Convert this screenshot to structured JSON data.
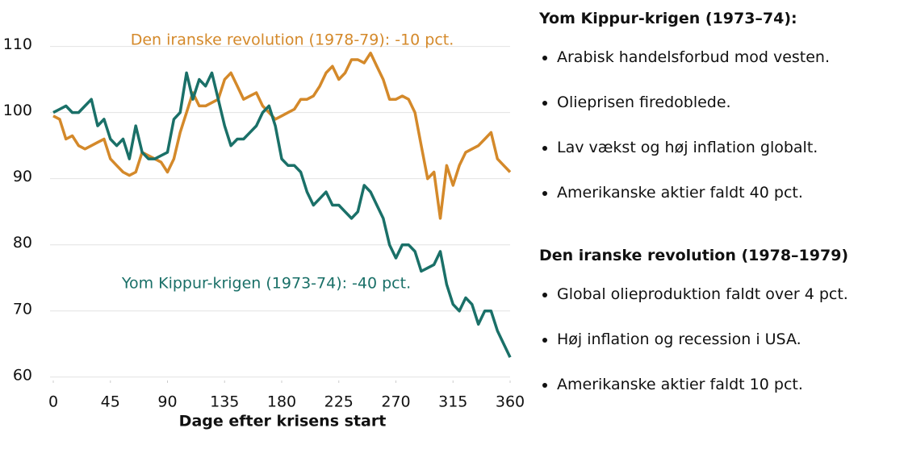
{
  "chart_data": {
    "type": "line",
    "x_label": "Dage efter krisens start",
    "x": [
      0,
      5,
      10,
      15,
      20,
      25,
      30,
      35,
      40,
      45,
      50,
      55,
      60,
      65,
      70,
      75,
      80,
      85,
      90,
      95,
      100,
      105,
      110,
      115,
      120,
      125,
      130,
      135,
      140,
      145,
      150,
      155,
      160,
      165,
      170,
      175,
      180,
      185,
      190,
      195,
      200,
      205,
      210,
      215,
      220,
      225,
      230,
      235,
      240,
      245,
      250,
      255,
      260,
      265,
      270,
      275,
      280,
      285,
      290,
      295,
      300,
      305,
      310,
      315,
      320,
      325,
      330,
      335,
      340,
      345,
      350,
      355,
      360
    ],
    "series": [
      {
        "name": "Den iranske revolution (1978-79): -10 pct.",
        "color": "#d4892a",
        "values": [
          99.5,
          99,
          96,
          96.5,
          95,
          94.5,
          95,
          95.5,
          96,
          93,
          92,
          91,
          90.5,
          91,
          94,
          93.5,
          93,
          92.5,
          91,
          93,
          97,
          100,
          103,
          101,
          101,
          101.5,
          102,
          105,
          106,
          104,
          102,
          102.5,
          103,
          101,
          100,
          99,
          99.5,
          100,
          100.5,
          102,
          102,
          102.5,
          104,
          106,
          107,
          105,
          106,
          108,
          108,
          107.5,
          109,
          107,
          105,
          102,
          102,
          102.5,
          102,
          100,
          95,
          90,
          91,
          84,
          92,
          89,
          92,
          94,
          94.5,
          95,
          96,
          97,
          93,
          92,
          91
        ]
      },
      {
        "name": "Yom Kippur-krigen (1973-74): -40 pct.",
        "color": "#1a7068",
        "values": [
          100,
          100.5,
          101,
          100,
          100,
          101,
          102,
          98,
          99,
          96,
          95,
          96,
          93,
          98,
          94,
          93,
          93,
          93.5,
          94,
          99,
          100,
          106,
          102,
          105,
          104,
          106,
          102,
          98,
          95,
          96,
          96,
          97,
          98,
          100,
          101,
          98,
          93,
          92,
          92,
          91,
          88,
          86,
          87,
          88,
          86,
          86,
          85,
          84,
          85,
          89,
          88,
          86,
          84,
          80,
          78,
          80,
          80,
          79,
          76,
          76.5,
          77,
          79,
          74,
          71,
          70,
          72,
          71,
          68,
          70,
          70,
          67,
          65,
          63
        ]
      }
    ],
    "xlim": [
      0,
      360
    ],
    "xticks": [
      0,
      45,
      90,
      135,
      180,
      225,
      270,
      315,
      360
    ],
    "ylim": [
      59,
      113
    ],
    "yticks": [
      60,
      70,
      80,
      90,
      100,
      110
    ],
    "grid": true
  },
  "sidebar": {
    "sections": [
      {
        "title": "Yom Kippur-krigen (1973–74):",
        "items": [
          "Arabisk handelsforbud mod vesten.",
          "Olieprisen firedoblede.",
          "Lav vækst og høj inflation globalt.",
          "Amerikanske aktier faldt 40 pct."
        ]
      },
      {
        "title": "Den iranske revolution (1978–1979)",
        "items": [
          "Global olieproduktion faldt over 4 pct.",
          "Høj inflation og recession i USA.",
          "Amerikanske aktier faldt 10 pct."
        ]
      }
    ]
  }
}
